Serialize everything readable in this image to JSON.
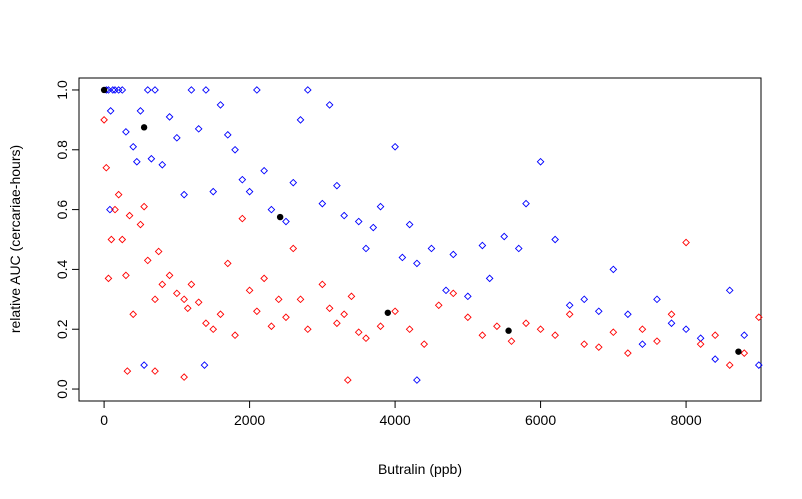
{
  "chart_data": {
    "type": "scatter",
    "xlabel": "Butralin (ppb)",
    "ylabel": "relative AUC (cercariae-hours)",
    "xlim": [
      -345,
      9030
    ],
    "ylim": [
      -0.04,
      1.04
    ],
    "xticks": [
      0,
      2000,
      4000,
      6000,
      8000
    ],
    "yticks": [
      {
        "value": 0,
        "label": "0.0"
      },
      {
        "value": 0.2,
        "label": "0.2"
      },
      {
        "value": 0.4,
        "label": "0.4"
      },
      {
        "value": 0.6,
        "label": "0.6"
      },
      {
        "value": 0.8,
        "label": "0.8"
      },
      {
        "value": 1,
        "label": "1.0"
      }
    ],
    "series": [
      {
        "color": "#0000ff",
        "marker": "diamond",
        "x": [
          30,
          60,
          90,
          120,
          150,
          200,
          250,
          300,
          400,
          450,
          500,
          600,
          650,
          700,
          800,
          900,
          1000,
          1100,
          1200,
          1300,
          1400,
          1500,
          1600,
          1700,
          1800,
          1900,
          2000,
          2100,
          2200,
          2300,
          2500,
          2600,
          2700,
          2800,
          3000,
          3100,
          3200,
          3300,
          3500,
          3600,
          3700,
          3800,
          4000,
          4100,
          4200,
          4300,
          4500,
          4700,
          4800,
          5000,
          5200,
          5300,
          5500,
          5700,
          5800,
          6000,
          6200,
          6400,
          6600,
          6800,
          7000,
          7200,
          7400,
          7600,
          7800,
          8000,
          8200,
          8400,
          8600,
          8800,
          9000,
          80,
          550,
          1380,
          4300
        ],
        "values": [
          1,
          1,
          0.93,
          1,
          1,
          1,
          1,
          0.86,
          0.81,
          0.76,
          0.93,
          1,
          0.77,
          1,
          0.75,
          0.91,
          0.84,
          0.65,
          1,
          0.87,
          1,
          0.66,
          0.95,
          0.85,
          0.8,
          0.7,
          0.66,
          1,
          0.73,
          0.6,
          0.56,
          0.69,
          0.9,
          1,
          0.62,
          0.95,
          0.68,
          0.58,
          0.56,
          0.47,
          0.54,
          0.61,
          0.81,
          0.44,
          0.55,
          0.42,
          0.47,
          0.33,
          0.45,
          0.31,
          0.48,
          0.37,
          0.51,
          0.47,
          0.62,
          0.76,
          0.5,
          0.28,
          0.3,
          0.26,
          0.4,
          0.25,
          0.15,
          0.3,
          0.22,
          0.2,
          0.17,
          0.1,
          0.33,
          0.18,
          0.08,
          0.6,
          0.08,
          0.08,
          0.03
        ]
      },
      {
        "color": "#ff0000",
        "marker": "diamond",
        "x": [
          0,
          30,
          60,
          100,
          150,
          200,
          250,
          300,
          350,
          400,
          500,
          550,
          600,
          700,
          750,
          800,
          900,
          1000,
          1100,
          1150,
          1200,
          1300,
          1400,
          1500,
          1600,
          1700,
          1800,
          1900,
          2000,
          2100,
          2200,
          2300,
          2400,
          2500,
          2600,
          2700,
          2800,
          3000,
          3100,
          3200,
          3300,
          3400,
          3500,
          3600,
          3800,
          4000,
          4200,
          4400,
          4600,
          4800,
          5000,
          5200,
          5400,
          5600,
          5800,
          6000,
          6200,
          6400,
          6600,
          6800,
          7000,
          7200,
          7400,
          7600,
          7800,
          8000,
          8200,
          8400,
          8600,
          8800,
          9000,
          320,
          700,
          1100,
          3350
        ],
        "values": [
          0.9,
          0.74,
          0.37,
          0.5,
          0.6,
          0.65,
          0.5,
          0.38,
          0.58,
          0.25,
          0.55,
          0.61,
          0.43,
          0.3,
          0.46,
          0.35,
          0.38,
          0.32,
          0.3,
          0.27,
          0.35,
          0.29,
          0.22,
          0.2,
          0.25,
          0.42,
          0.18,
          0.57,
          0.33,
          0.26,
          0.37,
          0.21,
          0.3,
          0.24,
          0.47,
          0.3,
          0.2,
          0.35,
          0.27,
          0.22,
          0.25,
          0.31,
          0.19,
          0.17,
          0.21,
          0.26,
          0.2,
          0.15,
          0.28,
          0.32,
          0.24,
          0.18,
          0.21,
          0.16,
          0.22,
          0.2,
          0.18,
          0.25,
          0.15,
          0.14,
          0.19,
          0.12,
          0.2,
          0.16,
          0.25,
          0.49,
          0.15,
          0.18,
          0.08,
          0.12,
          0.24,
          0.06,
          0.06,
          0.04,
          0.03
        ]
      },
      {
        "color": "#000000",
        "marker": "circle",
        "x": [
          0,
          550,
          2420,
          3900,
          5560,
          8720
        ],
        "values": [
          1,
          0.875,
          0.575,
          0.255,
          0.195,
          0.125
        ]
      }
    ]
  }
}
